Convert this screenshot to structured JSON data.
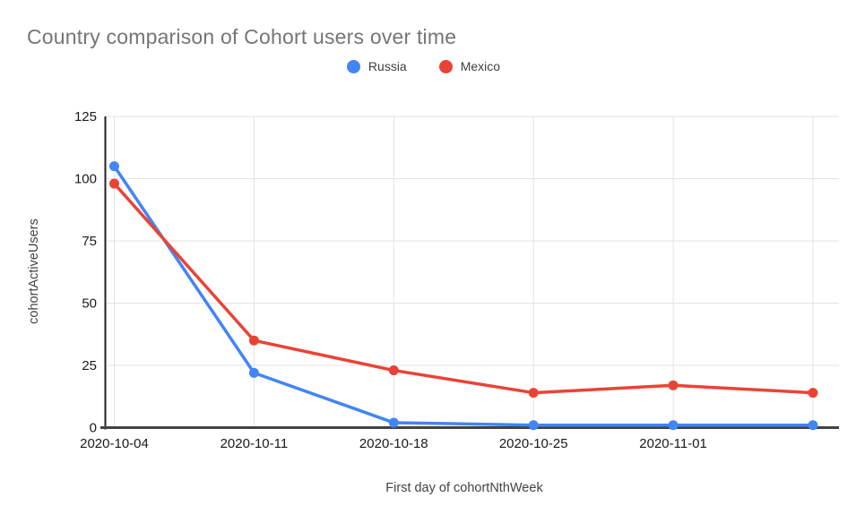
{
  "title": "Country comparison of Cohort users over time",
  "chart_data": {
    "type": "line",
    "title": "Country comparison of Cohort users over time",
    "xlabel": "First day of cohortNthWeek",
    "ylabel": "cohortActiveUsers",
    "x_tick_labels": [
      "2020-10-04",
      "2020-10-11",
      "2020-10-18",
      "2020-10-25",
      "2020-11-01",
      ""
    ],
    "yticks": [
      0,
      25,
      50,
      75,
      100,
      125
    ],
    "ylim": [
      0,
      125
    ],
    "grid": true,
    "legend_position": "top",
    "series": [
      {
        "name": "Russia",
        "color": "#4285F4",
        "values": [
          105,
          22,
          2,
          1,
          1,
          1
        ]
      },
      {
        "name": "Mexico",
        "color": "#EA4335",
        "values": [
          98,
          35,
          23,
          14,
          17,
          14
        ]
      }
    ]
  },
  "colors": {
    "russia": "#4285F4",
    "mexico": "#EA4335",
    "gridline": "#e3e3e3",
    "axis": "#424242",
    "title_text": "#757575"
  }
}
